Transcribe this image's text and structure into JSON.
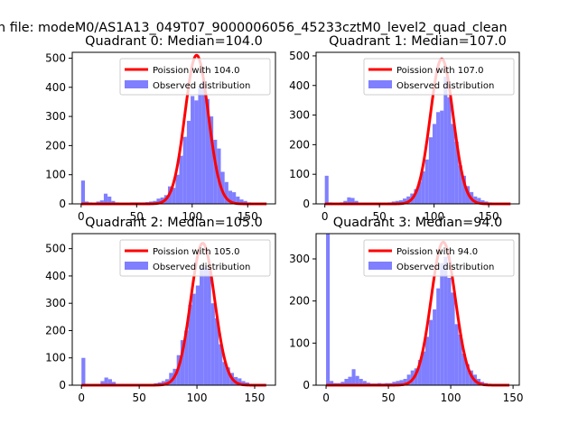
{
  "figure": {
    "suptitle": "n file: modeM0/AS1A13_049T07_9000006056_45233cztM0_level2_quad_clean"
  },
  "colors": {
    "bars": "#7f7fff",
    "poisson": "#ff0000",
    "axes": "#000000"
  },
  "chart_data": [
    {
      "type": "bar",
      "title": "Quadrant 0: Median=104.0",
      "xlim": [
        -8,
        175
      ],
      "ylim": [
        0,
        520
      ],
      "xticks": [
        0,
        50,
        100,
        150
      ],
      "yticks": [
        0,
        100,
        200,
        300,
        400,
        500
      ],
      "legend": [
        "Poission with 104.0",
        "Observed distribution"
      ],
      "legend_position": "upper right",
      "bin_width": 3.4,
      "bins": [
        {
          "x": 0,
          "y": 80
        },
        {
          "x": 3.4,
          "y": 8
        },
        {
          "x": 6.8,
          "y": 5
        },
        {
          "x": 10.2,
          "y": 4
        },
        {
          "x": 13.6,
          "y": 8
        },
        {
          "x": 17,
          "y": 12
        },
        {
          "x": 20.4,
          "y": 35
        },
        {
          "x": 23.8,
          "y": 25
        },
        {
          "x": 27.2,
          "y": 10
        },
        {
          "x": 30.6,
          "y": 5
        },
        {
          "x": 34,
          "y": 4
        },
        {
          "x": 37.4,
          "y": 3
        },
        {
          "x": 40.8,
          "y": 4
        },
        {
          "x": 44.2,
          "y": 5
        },
        {
          "x": 47.6,
          "y": 5
        },
        {
          "x": 51,
          "y": 5
        },
        {
          "x": 54.4,
          "y": 5
        },
        {
          "x": 57.8,
          "y": 6
        },
        {
          "x": 61.2,
          "y": 8
        },
        {
          "x": 64.6,
          "y": 10
        },
        {
          "x": 68,
          "y": 18
        },
        {
          "x": 71.4,
          "y": 22
        },
        {
          "x": 74.8,
          "y": 30
        },
        {
          "x": 78.2,
          "y": 60
        },
        {
          "x": 81.6,
          "y": 55
        },
        {
          "x": 85,
          "y": 100
        },
        {
          "x": 88.4,
          "y": 165
        },
        {
          "x": 91.8,
          "y": 230
        },
        {
          "x": 95.2,
          "y": 285
        },
        {
          "x": 98.6,
          "y": 370
        },
        {
          "x": 102,
          "y": 355
        },
        {
          "x": 105.4,
          "y": 405
        },
        {
          "x": 108.8,
          "y": 420
        },
        {
          "x": 112.2,
          "y": 360
        },
        {
          "x": 115.6,
          "y": 300
        },
        {
          "x": 119,
          "y": 220
        },
        {
          "x": 122.4,
          "y": 190
        },
        {
          "x": 125.8,
          "y": 110
        },
        {
          "x": 129.2,
          "y": 75
        },
        {
          "x": 132.6,
          "y": 45
        },
        {
          "x": 136,
          "y": 40
        },
        {
          "x": 139.4,
          "y": 25
        },
        {
          "x": 142.8,
          "y": 15
        },
        {
          "x": 146.2,
          "y": 10
        },
        {
          "x": 149.6,
          "y": 5
        },
        {
          "x": 153,
          "y": 4
        },
        {
          "x": 156.4,
          "y": 3
        },
        {
          "x": 159.8,
          "y": 2
        },
        {
          "x": 163.2,
          "y": 1
        },
        {
          "x": 166.6,
          "y": 1
        }
      ],
      "poisson": {
        "mean": 104.0,
        "peak": 510,
        "sigma": 10.5
      }
    },
    {
      "type": "bar",
      "title": "Quadrant 1: Median=107.0",
      "xlim": [
        -8,
        178
      ],
      "ylim": [
        0,
        512
      ],
      "xticks": [
        0,
        50,
        100,
        150
      ],
      "yticks": [
        0,
        100,
        200,
        300,
        400,
        500
      ],
      "legend": [
        "Poission with 107.0",
        "Observed distribution"
      ],
      "legend_position": "upper right",
      "bin_width": 3.4,
      "bins": [
        {
          "x": 0,
          "y": 95
        },
        {
          "x": 3.4,
          "y": 5
        },
        {
          "x": 6.8,
          "y": 4
        },
        {
          "x": 10.2,
          "y": 3
        },
        {
          "x": 13.6,
          "y": 5
        },
        {
          "x": 17,
          "y": 10
        },
        {
          "x": 20.4,
          "y": 22
        },
        {
          "x": 23.8,
          "y": 20
        },
        {
          "x": 27.2,
          "y": 10
        },
        {
          "x": 30.6,
          "y": 4
        },
        {
          "x": 34,
          "y": 3
        },
        {
          "x": 37.4,
          "y": 3
        },
        {
          "x": 40.8,
          "y": 3
        },
        {
          "x": 44.2,
          "y": 3
        },
        {
          "x": 47.6,
          "y": 3
        },
        {
          "x": 51,
          "y": 3
        },
        {
          "x": 54.4,
          "y": 4
        },
        {
          "x": 57.8,
          "y": 5
        },
        {
          "x": 61.2,
          "y": 8
        },
        {
          "x": 64.6,
          "y": 10
        },
        {
          "x": 68,
          "y": 12
        },
        {
          "x": 71.4,
          "y": 18
        },
        {
          "x": 74.8,
          "y": 25
        },
        {
          "x": 78.2,
          "y": 35
        },
        {
          "x": 81.6,
          "y": 50
        },
        {
          "x": 85,
          "y": 75
        },
        {
          "x": 88.4,
          "y": 110
        },
        {
          "x": 91.8,
          "y": 150
        },
        {
          "x": 95.2,
          "y": 225
        },
        {
          "x": 98.6,
          "y": 270
        },
        {
          "x": 102,
          "y": 310
        },
        {
          "x": 105.4,
          "y": 315
        },
        {
          "x": 108.8,
          "y": 430
        },
        {
          "x": 112.2,
          "y": 360
        },
        {
          "x": 115.6,
          "y": 270
        },
        {
          "x": 119,
          "y": 210
        },
        {
          "x": 122.4,
          "y": 130
        },
        {
          "x": 125.8,
          "y": 95
        },
        {
          "x": 129.2,
          "y": 60
        },
        {
          "x": 132.6,
          "y": 40
        },
        {
          "x": 136,
          "y": 25
        },
        {
          "x": 139.4,
          "y": 20
        },
        {
          "x": 142.8,
          "y": 12
        },
        {
          "x": 146.2,
          "y": 8
        },
        {
          "x": 149.6,
          "y": 5
        },
        {
          "x": 153,
          "y": 3
        },
        {
          "x": 156.4,
          "y": 2
        },
        {
          "x": 159.8,
          "y": 2
        },
        {
          "x": 163.2,
          "y": 1
        },
        {
          "x": 166.6,
          "y": 1
        }
      ],
      "poisson": {
        "mean": 107.0,
        "peak": 490,
        "sigma": 10.5
      }
    },
    {
      "type": "bar",
      "title": "Quadrant 2: Median=105.0",
      "xlim": [
        -8,
        168
      ],
      "ylim": [
        0,
        555
      ],
      "xticks": [
        0,
        50,
        100,
        150
      ],
      "yticks": [
        0,
        100,
        200,
        300,
        400,
        500
      ],
      "legend": [
        "Poission with 105.0",
        "Observed distribution"
      ],
      "legend_position": "upper right",
      "bin_width": 3.3,
      "bins": [
        {
          "x": 0,
          "y": 100
        },
        {
          "x": 3.3,
          "y": 5
        },
        {
          "x": 6.6,
          "y": 4
        },
        {
          "x": 9.9,
          "y": 3
        },
        {
          "x": 13.2,
          "y": 5
        },
        {
          "x": 16.5,
          "y": 15
        },
        {
          "x": 19.8,
          "y": 28
        },
        {
          "x": 23.1,
          "y": 22
        },
        {
          "x": 26.4,
          "y": 12
        },
        {
          "x": 29.7,
          "y": 5
        },
        {
          "x": 33,
          "y": 3
        },
        {
          "x": 36.3,
          "y": 3
        },
        {
          "x": 39.6,
          "y": 3
        },
        {
          "x": 42.9,
          "y": 3
        },
        {
          "x": 46.2,
          "y": 3
        },
        {
          "x": 49.5,
          "y": 3
        },
        {
          "x": 52.8,
          "y": 3
        },
        {
          "x": 56.1,
          "y": 4
        },
        {
          "x": 59.4,
          "y": 5
        },
        {
          "x": 62.7,
          "y": 7
        },
        {
          "x": 66,
          "y": 10
        },
        {
          "x": 69.3,
          "y": 15
        },
        {
          "x": 72.6,
          "y": 22
        },
        {
          "x": 75.9,
          "y": 45
        },
        {
          "x": 79.2,
          "y": 60
        },
        {
          "x": 82.5,
          "y": 110
        },
        {
          "x": 85.8,
          "y": 165
        },
        {
          "x": 89.1,
          "y": 200
        },
        {
          "x": 92.4,
          "y": 295
        },
        {
          "x": 95.7,
          "y": 335
        },
        {
          "x": 99,
          "y": 365
        },
        {
          "x": 102.3,
          "y": 435
        },
        {
          "x": 105.6,
          "y": 430
        },
        {
          "x": 108.9,
          "y": 430
        },
        {
          "x": 112.2,
          "y": 300
        },
        {
          "x": 115.5,
          "y": 245
        },
        {
          "x": 118.8,
          "y": 150
        },
        {
          "x": 122.1,
          "y": 85
        },
        {
          "x": 125.4,
          "y": 65
        },
        {
          "x": 128.7,
          "y": 45
        },
        {
          "x": 132,
          "y": 30
        },
        {
          "x": 135.3,
          "y": 25
        },
        {
          "x": 138.6,
          "y": 15
        },
        {
          "x": 141.9,
          "y": 10
        },
        {
          "x": 145.2,
          "y": 5
        },
        {
          "x": 148.5,
          "y": 3
        },
        {
          "x": 151.8,
          "y": 2
        },
        {
          "x": 155.1,
          "y": 2
        },
        {
          "x": 158.4,
          "y": 1
        },
        {
          "x": 161.7,
          "y": 1
        }
      ],
      "poisson": {
        "mean": 105.0,
        "peak": 520,
        "sigma": 10.3
      }
    },
    {
      "type": "bar",
      "title": "Quadrant 3: Median=94.0",
      "xlim": [
        -8,
        155
      ],
      "ylim": [
        0,
        360
      ],
      "xticks": [
        0,
        50,
        100,
        150
      ],
      "yticks": [
        0,
        100,
        200,
        300
      ],
      "legend": [
        "Poission with 94.0",
        "Observed distribution"
      ],
      "legend_position": "upper right",
      "bin_width": 2.95,
      "bins": [
        {
          "x": 0,
          "y": 360
        },
        {
          "x": 2.95,
          "y": 10
        },
        {
          "x": 5.9,
          "y": 5
        },
        {
          "x": 8.85,
          "y": 5
        },
        {
          "x": 11.8,
          "y": 8
        },
        {
          "x": 14.75,
          "y": 15
        },
        {
          "x": 17.7,
          "y": 20
        },
        {
          "x": 20.65,
          "y": 38
        },
        {
          "x": 23.6,
          "y": 22
        },
        {
          "x": 26.55,
          "y": 15
        },
        {
          "x": 29.5,
          "y": 10
        },
        {
          "x": 32.45,
          "y": 6
        },
        {
          "x": 35.4,
          "y": 4
        },
        {
          "x": 38.35,
          "y": 4
        },
        {
          "x": 41.3,
          "y": 5
        },
        {
          "x": 44.25,
          "y": 4
        },
        {
          "x": 47.2,
          "y": 5
        },
        {
          "x": 50.15,
          "y": 5
        },
        {
          "x": 53.1,
          "y": 8
        },
        {
          "x": 56.05,
          "y": 10
        },
        {
          "x": 59,
          "y": 12
        },
        {
          "x": 61.95,
          "y": 15
        },
        {
          "x": 64.9,
          "y": 25
        },
        {
          "x": 67.85,
          "y": 35
        },
        {
          "x": 70.8,
          "y": 40
        },
        {
          "x": 73.75,
          "y": 60
        },
        {
          "x": 76.7,
          "y": 80
        },
        {
          "x": 79.65,
          "y": 115
        },
        {
          "x": 82.6,
          "y": 155
        },
        {
          "x": 85.55,
          "y": 180
        },
        {
          "x": 88.5,
          "y": 230
        },
        {
          "x": 91.45,
          "y": 290
        },
        {
          "x": 94.4,
          "y": 305
        },
        {
          "x": 97.35,
          "y": 255
        },
        {
          "x": 100.3,
          "y": 220
        },
        {
          "x": 103.25,
          "y": 145
        },
        {
          "x": 106.2,
          "y": 120
        },
        {
          "x": 109.15,
          "y": 75
        },
        {
          "x": 112.1,
          "y": 50
        },
        {
          "x": 115.05,
          "y": 35
        },
        {
          "x": 118,
          "y": 25
        },
        {
          "x": 120.95,
          "y": 15
        },
        {
          "x": 123.9,
          "y": 8
        },
        {
          "x": 126.85,
          "y": 5
        },
        {
          "x": 129.8,
          "y": 3
        },
        {
          "x": 132.75,
          "y": 2
        },
        {
          "x": 135.7,
          "y": 1
        },
        {
          "x": 138.65,
          "y": 1
        },
        {
          "x": 141.6,
          "y": 1
        },
        {
          "x": 144.55,
          "y": 1
        }
      ],
      "poisson": {
        "mean": 94.0,
        "peak": 340,
        "sigma": 9.7
      }
    }
  ]
}
